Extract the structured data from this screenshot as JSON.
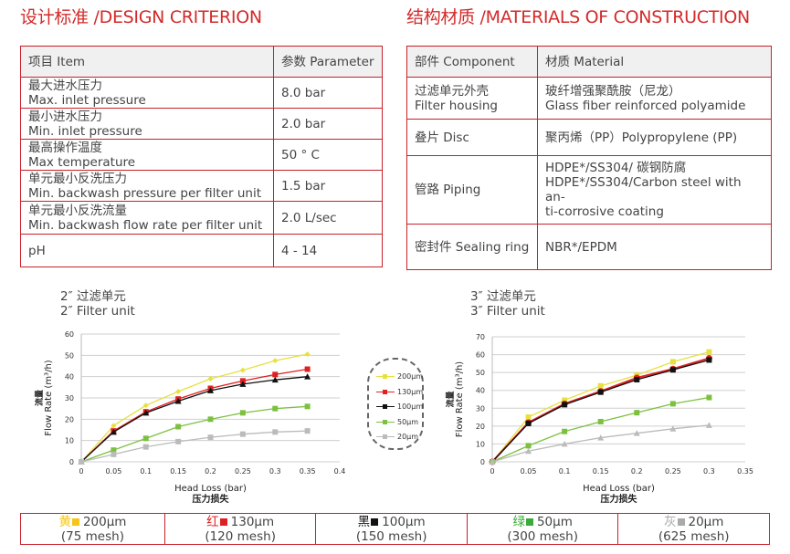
{
  "design": {
    "title": "设计标准 /DESIGN CRITERION",
    "headers": [
      "项目 Item",
      "参数 Parameter"
    ],
    "rows": [
      {
        "item": [
          "最大进水压力",
          "Max. inlet pressure"
        ],
        "value": "8.0 bar"
      },
      {
        "item": [
          "最小进水压力",
          "Min. inlet pressure"
        ],
        "value": "2.0 bar"
      },
      {
        "item": [
          "最高操作温度",
          "Max temperature"
        ],
        "value": "50 ° C"
      },
      {
        "item": [
          "单元最小反洗压力",
          "Min. backwash pressure per filter unit"
        ],
        "value": "1.5 bar"
      },
      {
        "item": [
          "单元最小反洗流量",
          "Min. backwash flow rate per filter unit"
        ],
        "value": "2.0 L/sec"
      },
      {
        "item": [
          "pH",
          ""
        ],
        "value": "4 - 14"
      }
    ]
  },
  "materials": {
    "title": "结构材质 /MATERIALS OF CONSTRUCTION",
    "headers": [
      "部件 Component",
      "材质 Material"
    ],
    "rows": [
      {
        "component": "过滤单元外壳\nFilter housing",
        "material": "玻纤增强聚酰胺（尼龙）\nGlass fiber reinforced polyamide"
      },
      {
        "component": "叠片 Disc",
        "material": "聚丙烯（PP）Polypropylene (PP)"
      },
      {
        "component": "管路 Piping",
        "material": "HDPE*/SS304/ 碳钢防腐\nHDPE*/SS304/Carbon steel with an-\nti-corrosive coating"
      },
      {
        "component": "密封件 Sealing ring",
        "material": "NBR*/EPDM"
      }
    ]
  },
  "chart_data": [
    {
      "type": "line",
      "caption": [
        "2″ 过滤单元",
        "2″ Filter unit"
      ],
      "xlabel": "Head Loss (bar)",
      "xlabel_cn": "压力损失",
      "ylabel": "Flow Rate (m³/h)",
      "ylabel_cn": "流量",
      "xlim": [
        0,
        0.4
      ],
      "ylim": [
        0,
        60
      ],
      "xticks": [
        "0",
        "0.05",
        "0.1",
        "0.15",
        "0.2",
        "0.25",
        "0.3",
        "0.35",
        "0.4"
      ],
      "yticks": [
        "0",
        "10",
        "20",
        "30",
        "40",
        "50",
        "60"
      ],
      "grid": "horizontal",
      "legend": "right, dashed box",
      "x": [
        0,
        0.05,
        0.1,
        0.15,
        0.2,
        0.25,
        0.3,
        0.35
      ],
      "series": [
        {
          "name": "200μm",
          "color": "#e8e040",
          "marker": "diamond",
          "values": [
            0,
            17,
            26.5,
            33,
            39,
            43,
            47.5,
            50.5
          ]
        },
        {
          "name": "130μm",
          "color": "#e02020",
          "marker": "square",
          "values": [
            0,
            14.5,
            23.5,
            29.5,
            34.5,
            38,
            41,
            43.5
          ]
        },
        {
          "name": "100μm",
          "color": "#111111",
          "marker": "triangle",
          "values": [
            0,
            14,
            23,
            28.5,
            33.5,
            36.5,
            38.5,
            40
          ]
        },
        {
          "name": "50μm",
          "color": "#7cc040",
          "marker": "square",
          "values": [
            0,
            5.5,
            11,
            16.5,
            20,
            23,
            25,
            26
          ]
        },
        {
          "name": "20μm",
          "color": "#bbbbbb",
          "marker": "square",
          "values": [
            0,
            3.5,
            7,
            9.5,
            11.5,
            13,
            14,
            14.5
          ]
        }
      ]
    },
    {
      "type": "line",
      "caption": [
        "3″ 过滤单元",
        "3″ Filter unit"
      ],
      "xlabel": "Head Loss (bar)",
      "xlabel_cn": "压力损失",
      "ylabel": "Flow Rate (m³/h)",
      "ylabel_cn": "流量",
      "xlim": [
        0,
        0.35
      ],
      "ylim": [
        0,
        70
      ],
      "xticks": [
        "0",
        "0.05",
        "0.1",
        "0.15",
        "0.2",
        "0.25",
        "0.3",
        "0.35"
      ],
      "yticks": [
        "0",
        "10",
        "20",
        "30",
        "40",
        "50",
        "60",
        "70"
      ],
      "grid": "horizontal",
      "x": [
        0,
        0.05,
        0.1,
        0.15,
        0.2,
        0.25,
        0.3
      ],
      "series": [
        {
          "color": "#e8e040",
          "marker": "square",
          "values": [
            0,
            25,
            34.5,
            42.5,
            48.5,
            56,
            61.5
          ]
        },
        {
          "color": "#e02020",
          "marker": "circle",
          "values": [
            0,
            22,
            32.5,
            39.5,
            47,
            52,
            58
          ]
        },
        {
          "color": "#111111",
          "marker": "square",
          "values": [
            0,
            21.5,
            32,
            39,
            46,
            51.5,
            57
          ]
        },
        {
          "color": "#7cc040",
          "marker": "square",
          "values": [
            0,
            9,
            17,
            22.5,
            27.5,
            32.5,
            36
          ]
        },
        {
          "color": "#bbbbbb",
          "marker": "triangle",
          "values": [
            0,
            6,
            10,
            13.5,
            16,
            18.5,
            20.5
          ]
        }
      ]
    }
  ],
  "key": [
    {
      "cn": "黄",
      "color": "#f5c518",
      "size": "200μm",
      "mesh": "(75 mesh)"
    },
    {
      "cn": "红",
      "color": "#e02020",
      "size": "130μm",
      "mesh": "(120 mesh)"
    },
    {
      "cn": "黑",
      "color": "#111111",
      "size": "100μm",
      "mesh": "(150 mesh)"
    },
    {
      "cn": "绿",
      "color": "#3aaa3a",
      "size": "50μm",
      "mesh": "(300 mesh)"
    },
    {
      "cn": "灰",
      "color": "#aaaaaa",
      "size": "20μm",
      "mesh": "(625 mesh)"
    }
  ]
}
